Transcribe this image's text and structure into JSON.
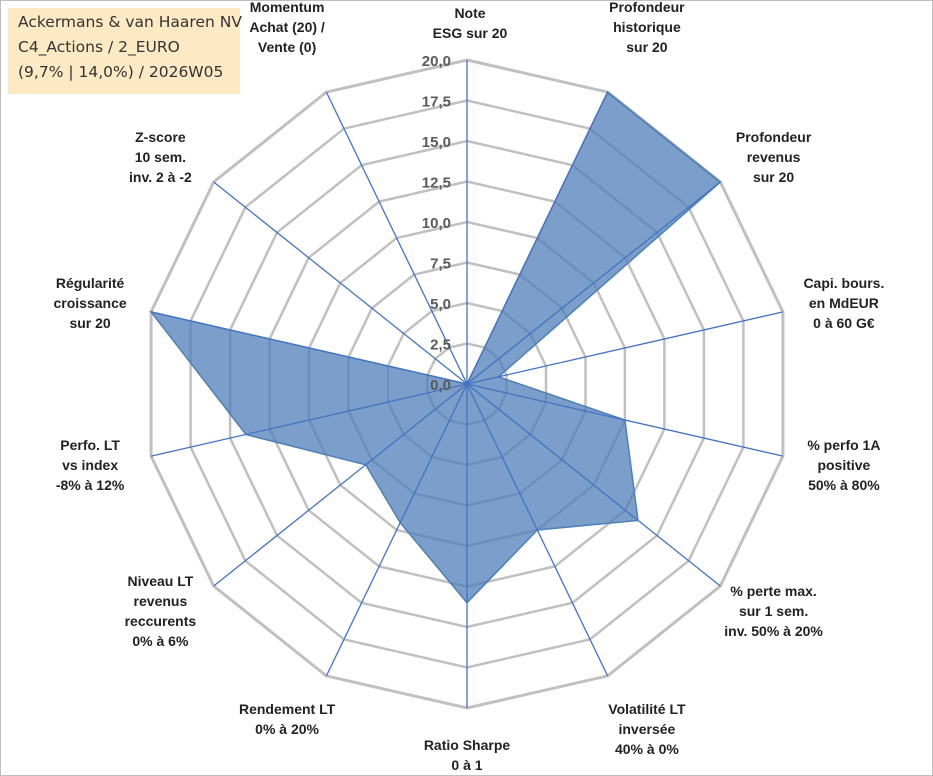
{
  "header": {
    "line1": "Ackermans & van Haaren NV",
    "line2": "C4_Actions / 2_EURO",
    "line3": "(9,7% | 14,0%) / 2026W05"
  },
  "chart_data": {
    "type": "radar",
    "title": "Ackermans & van Haaren NV",
    "axes": [
      [
        "Note",
        "ESG sur 20"
      ],
      [
        "Profondeur",
        "historique",
        "sur 20"
      ],
      [
        "Profondeur",
        "revenus",
        "sur 20"
      ],
      [
        "Capi. bours.",
        "en MdEUR",
        "0 à 60 G€"
      ],
      [
        "% perfo 1A",
        "positive",
        "50% à 80%"
      ],
      [
        "% perte max.",
        "sur 1 sem.",
        "inv. 50% à 20%"
      ],
      [
        "Volatilité LT",
        "inversée",
        "40% à 0%"
      ],
      [
        "Ratio Sharpe",
        "0 à 1"
      ],
      [
        "Rendement LT",
        "0% à 20%"
      ],
      [
        "Niveau LT",
        "revenus",
        "reccurents",
        "0% à 6%"
      ],
      [
        "Perfo. LT",
        "vs index",
        "-8% à 12%"
      ],
      [
        "Régularité",
        "croissance",
        "sur 20"
      ],
      [
        "Z-score",
        "10 sem.",
        "inv. 2 à -2"
      ],
      [
        "Momentum",
        "Achat (20) /",
        "Vente (0)"
      ]
    ],
    "series": [
      {
        "name": "Ackermans & van Haaren NV",
        "values": [
          0,
          20,
          20,
          2,
          10,
          13.5,
          10,
          13.5,
          9.5,
          8,
          14,
          20,
          0,
          0
        ],
        "color": "#4f7fb8"
      }
    ],
    "range": [
      0,
      20
    ],
    "ticks": [
      "0,0",
      "2,5",
      "5,0",
      "7,5",
      "10,0",
      "12,5",
      "15,0",
      "17,5",
      "20,0"
    ],
    "colors": {
      "grid": "#c0c0c0",
      "spoke": "#4472c4",
      "fill": "#4f7fb8",
      "header_bg": "#fde9c4"
    }
  }
}
